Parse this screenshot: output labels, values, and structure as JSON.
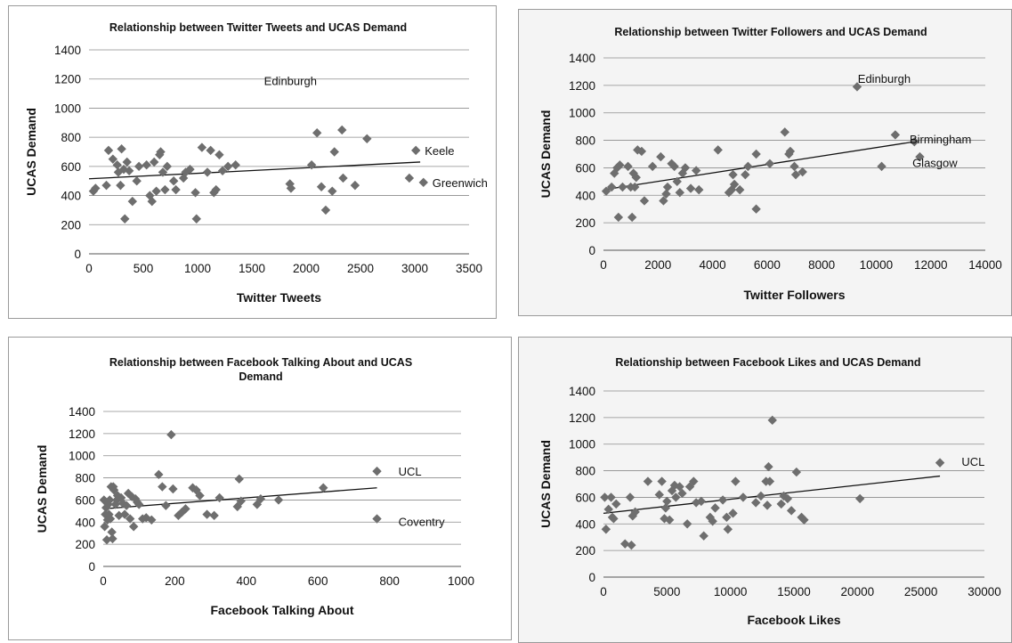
{
  "colors": {
    "marker": "#6e6e6e",
    "trendline": "#111111",
    "gridline": "#8c8c8c"
  },
  "chart_data": [
    {
      "type": "scatter",
      "title": [
        "Relationship between Twitter Tweets and UCAS Demand"
      ],
      "xlabel": "Twitter Tweets",
      "ylabel": "UCAS Demand",
      "xlim": [
        0,
        3500
      ],
      "ylim": [
        0,
        1400
      ],
      "xticks": [
        0,
        500,
        1000,
        1500,
        2000,
        2500,
        3000,
        3500
      ],
      "yticks": [
        0,
        200,
        400,
        600,
        800,
        1000,
        1200,
        1400
      ],
      "grid": true,
      "trendline": true,
      "background": "white",
      "points": [
        [
          40,
          430
        ],
        [
          60,
          450
        ],
        [
          160,
          470
        ],
        [
          180,
          710
        ],
        [
          220,
          650
        ],
        [
          260,
          610
        ],
        [
          270,
          560
        ],
        [
          290,
          470
        ],
        [
          300,
          720
        ],
        [
          320,
          580
        ],
        [
          330,
          240
        ],
        [
          350,
          630
        ],
        [
          370,
          570
        ],
        [
          400,
          360
        ],
        [
          440,
          500
        ],
        [
          460,
          600
        ],
        [
          530,
          610
        ],
        [
          560,
          400
        ],
        [
          580,
          360
        ],
        [
          600,
          630
        ],
        [
          620,
          430
        ],
        [
          650,
          680
        ],
        [
          660,
          700
        ],
        [
          680,
          560
        ],
        [
          700,
          440
        ],
        [
          720,
          600
        ],
        [
          780,
          500
        ],
        [
          800,
          440
        ],
        [
          870,
          520
        ],
        [
          890,
          560
        ],
        [
          930,
          580
        ],
        [
          980,
          420
        ],
        [
          990,
          240
        ],
        [
          1040,
          730
        ],
        [
          1090,
          560
        ],
        [
          1120,
          710
        ],
        [
          1150,
          420
        ],
        [
          1170,
          440
        ],
        [
          1200,
          680
        ],
        [
          1230,
          570
        ],
        [
          1280,
          600
        ],
        [
          1350,
          610
        ],
        [
          1850,
          480
        ],
        [
          1860,
          450
        ],
        [
          2050,
          610
        ],
        [
          2100,
          830
        ],
        [
          2140,
          460
        ],
        [
          2180,
          300
        ],
        [
          2240,
          430
        ],
        [
          2260,
          700
        ],
        [
          2330,
          850
        ],
        [
          2340,
          520
        ],
        [
          2450,
          470
        ],
        [
          2560,
          790
        ],
        [
          2950,
          520
        ],
        [
          3010,
          710
        ],
        [
          3080,
          490
        ]
      ],
      "trend": [
        [
          0,
          515
        ],
        [
          3050,
          630
        ]
      ],
      "annotations": [
        {
          "text": "Edinburgh",
          "x": 1530,
          "y": 1190
        },
        {
          "text": "Keele",
          "x": 3010,
          "y": 710
        },
        {
          "text": "Greenwich",
          "x": 3080,
          "y": 490
        }
      ]
    },
    {
      "type": "scatter",
      "title": [
        "Relationship between Twitter Followers and UCAS Demand"
      ],
      "xlabel": "Twitter Followers",
      "ylabel": "UCAS Demand",
      "xlim": [
        0,
        14000
      ],
      "ylim": [
        0,
        1400
      ],
      "xticks": [
        0,
        2000,
        4000,
        6000,
        8000,
        10000,
        12000,
        14000
      ],
      "yticks": [
        0,
        200,
        400,
        600,
        800,
        1000,
        1200,
        1400
      ],
      "grid": true,
      "trendline": true,
      "background": "shaded",
      "points": [
        [
          100,
          430
        ],
        [
          300,
          460
        ],
        [
          400,
          560
        ],
        [
          500,
          600
        ],
        [
          550,
          240
        ],
        [
          600,
          620
        ],
        [
          700,
          460
        ],
        [
          900,
          610
        ],
        [
          1000,
          460
        ],
        [
          1050,
          240
        ],
        [
          1100,
          560
        ],
        [
          1150,
          460
        ],
        [
          1200,
          530
        ],
        [
          1250,
          730
        ],
        [
          1400,
          720
        ],
        [
          1500,
          360
        ],
        [
          1800,
          610
        ],
        [
          2100,
          680
        ],
        [
          2200,
          360
        ],
        [
          2300,
          410
        ],
        [
          2350,
          460
        ],
        [
          2500,
          630
        ],
        [
          2600,
          610
        ],
        [
          2700,
          500
        ],
        [
          2800,
          420
        ],
        [
          2900,
          560
        ],
        [
          3000,
          600
        ],
        [
          3200,
          450
        ],
        [
          3400,
          580
        ],
        [
          3500,
          440
        ],
        [
          4200,
          730
        ],
        [
          4600,
          420
        ],
        [
          4700,
          440
        ],
        [
          4750,
          550
        ],
        [
          4800,
          480
        ],
        [
          5000,
          440
        ],
        [
          5200,
          550
        ],
        [
          5300,
          610
        ],
        [
          5600,
          700
        ],
        [
          5600,
          300
        ],
        [
          6100,
          630
        ],
        [
          6650,
          860
        ],
        [
          6800,
          700
        ],
        [
          6850,
          720
        ],
        [
          7000,
          610
        ],
        [
          7050,
          550
        ],
        [
          7300,
          570
        ],
        [
          9300,
          1190
        ],
        [
          10200,
          610
        ],
        [
          10700,
          840
        ],
        [
          11400,
          790
        ],
        [
          11600,
          680
        ]
      ],
      "trend": [
        [
          0,
          440
        ],
        [
          11400,
          790
        ]
      ],
      "annotations": [
        {
          "text": "Edinburgh",
          "x": 9000,
          "y": 1250
        },
        {
          "text": "Birmingham",
          "x": 10900,
          "y": 810
        },
        {
          "text": "Glasgow",
          "x": 11000,
          "y": 640
        }
      ]
    },
    {
      "type": "scatter",
      "title": [
        "Relationship between Facebook Talking About and UCAS",
        "Demand"
      ],
      "xlabel": "Facebook Talking About",
      "ylabel": "UCAS Demand",
      "xlim": [
        0,
        1000
      ],
      "ylim": [
        0,
        1400
      ],
      "xticks": [
        0,
        200,
        400,
        600,
        800,
        1000
      ],
      "yticks": [
        0,
        200,
        400,
        600,
        800,
        1000,
        1200,
        1400
      ],
      "grid": true,
      "trendline": true,
      "background": "white",
      "points": [
        [
          2,
          600
        ],
        [
          4,
          360
        ],
        [
          6,
          470
        ],
        [
          8,
          530
        ],
        [
          10,
          240
        ],
        [
          12,
          420
        ],
        [
          14,
          560
        ],
        [
          16,
          470
        ],
        [
          18,
          600
        ],
        [
          20,
          430
        ],
        [
          22,
          720
        ],
        [
          24,
          310
        ],
        [
          26,
          250
        ],
        [
          28,
          720
        ],
        [
          30,
          690
        ],
        [
          34,
          560
        ],
        [
          38,
          600
        ],
        [
          40,
          640
        ],
        [
          44,
          460
        ],
        [
          50,
          620
        ],
        [
          55,
          570
        ],
        [
          60,
          470
        ],
        [
          65,
          550
        ],
        [
          70,
          660
        ],
        [
          75,
          430
        ],
        [
          80,
          630
        ],
        [
          85,
          360
        ],
        [
          90,
          610
        ],
        [
          95,
          580
        ],
        [
          100,
          560
        ],
        [
          110,
          430
        ],
        [
          120,
          440
        ],
        [
          135,
          420
        ],
        [
          155,
          830
        ],
        [
          165,
          720
        ],
        [
          175,
          550
        ],
        [
          190,
          1190
        ],
        [
          195,
          700
        ],
        [
          210,
          460
        ],
        [
          220,
          490
        ],
        [
          230,
          520
        ],
        [
          250,
          710
        ],
        [
          260,
          690
        ],
        [
          270,
          640
        ],
        [
          290,
          470
        ],
        [
          310,
          460
        ],
        [
          325,
          620
        ],
        [
          375,
          540
        ],
        [
          380,
          790
        ],
        [
          385,
          590
        ],
        [
          430,
          560
        ],
        [
          440,
          610
        ],
        [
          490,
          600
        ],
        [
          615,
          710
        ],
        [
          765,
          860
        ],
        [
          765,
          430
        ]
      ],
      "trend": [
        [
          0,
          520
        ],
        [
          765,
          710
        ]
      ],
      "annotations": [
        {
          "text": "UCL",
          "x": 800,
          "y": 860
        },
        {
          "text": "Coventry",
          "x": 800,
          "y": 405
        }
      ]
    },
    {
      "type": "scatter",
      "title": [
        "Relationship between Facebook Likes and UCAS Demand"
      ],
      "xlabel": "Facebook Likes",
      "ylabel": "UCAS Demand",
      "xlim": [
        0,
        30000
      ],
      "ylim": [
        0,
        1400
      ],
      "xticks": [
        0,
        5000,
        10000,
        15000,
        20000,
        25000,
        30000
      ],
      "yticks": [
        0,
        200,
        400,
        600,
        800,
        1000,
        1200,
        1400
      ],
      "grid": true,
      "trendline": true,
      "background": "shaded",
      "points": [
        [
          100,
          600
        ],
        [
          200,
          360
        ],
        [
          400,
          510
        ],
        [
          600,
          600
        ],
        [
          700,
          450
        ],
        [
          800,
          440
        ],
        [
          1000,
          550
        ],
        [
          1700,
          250
        ],
        [
          2100,
          600
        ],
        [
          2200,
          240
        ],
        [
          2300,
          460
        ],
        [
          2500,
          490
        ],
        [
          3500,
          720
        ],
        [
          4400,
          620
        ],
        [
          4600,
          720
        ],
        [
          4800,
          440
        ],
        [
          4900,
          520
        ],
        [
          5000,
          570
        ],
        [
          5200,
          430
        ],
        [
          5400,
          650
        ],
        [
          5600,
          690
        ],
        [
          5700,
          600
        ],
        [
          6000,
          680
        ],
        [
          6200,
          630
        ],
        [
          6600,
          400
        ],
        [
          6800,
          680
        ],
        [
          7100,
          720
        ],
        [
          7300,
          560
        ],
        [
          7700,
          570
        ],
        [
          7900,
          310
        ],
        [
          8400,
          450
        ],
        [
          8600,
          420
        ],
        [
          8800,
          520
        ],
        [
          9400,
          580
        ],
        [
          9700,
          450
        ],
        [
          9800,
          360
        ],
        [
          10200,
          480
        ],
        [
          10400,
          720
        ],
        [
          11000,
          600
        ],
        [
          12000,
          560
        ],
        [
          12400,
          610
        ],
        [
          12800,
          720
        ],
        [
          12900,
          540
        ],
        [
          13000,
          830
        ],
        [
          13100,
          720
        ],
        [
          13300,
          1180
        ],
        [
          14000,
          550
        ],
        [
          14200,
          610
        ],
        [
          14500,
          590
        ],
        [
          14800,
          500
        ],
        [
          15200,
          790
        ],
        [
          15600,
          450
        ],
        [
          15800,
          430
        ],
        [
          20200,
          590
        ],
        [
          26500,
          860
        ]
      ],
      "trend": [
        [
          0,
          480
        ],
        [
          26500,
          760
        ]
      ],
      "annotations": [
        {
          "text": "UCL",
          "x": 27500,
          "y": 870
        }
      ]
    }
  ]
}
